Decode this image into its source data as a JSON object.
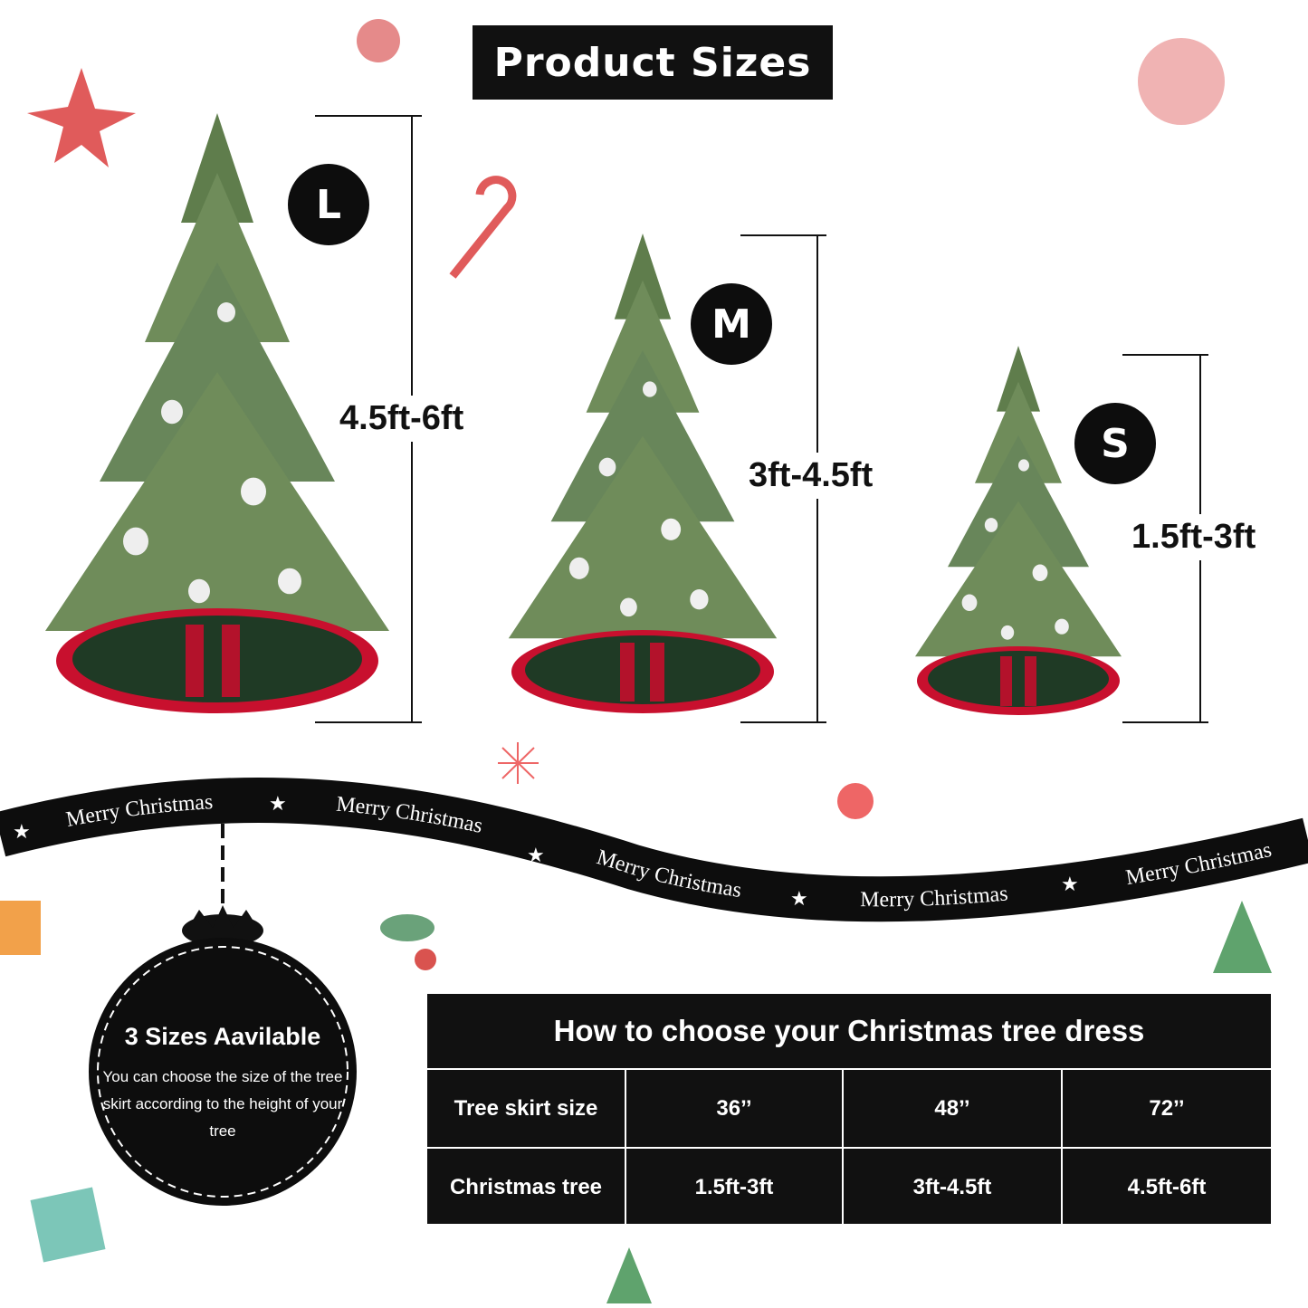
{
  "title": "Product Sizes",
  "sizes": [
    {
      "badge": "L",
      "height_range": "4.5ft-6ft"
    },
    {
      "badge": "M",
      "height_range": "3ft-4.5ft"
    },
    {
      "badge": "S",
      "height_range": "1.5ft-3ft"
    }
  ],
  "ribbon": {
    "text": "Merry Christmas",
    "star_icon": "star-icon",
    "color": "#0d0d0d"
  },
  "ornament": {
    "title": "3 Sizes Aavilable",
    "description": "You can choose the size of the tree skirt according to the height of your tree"
  },
  "table": {
    "title": "How to choose your Christmas tree dress",
    "rows": [
      [
        "Tree skirt size",
        "36’’",
        "48’’",
        "72’’"
      ],
      [
        "Christmas tree",
        "1.5ft-3ft",
        "3ft-4.5ft",
        "4.5ft-6ft"
      ]
    ]
  },
  "colors": {
    "skirt_red": "#c8102e",
    "skirt_green": "#1f3a25",
    "tree_green": "#6f8c5a",
    "dark": "#111111"
  }
}
